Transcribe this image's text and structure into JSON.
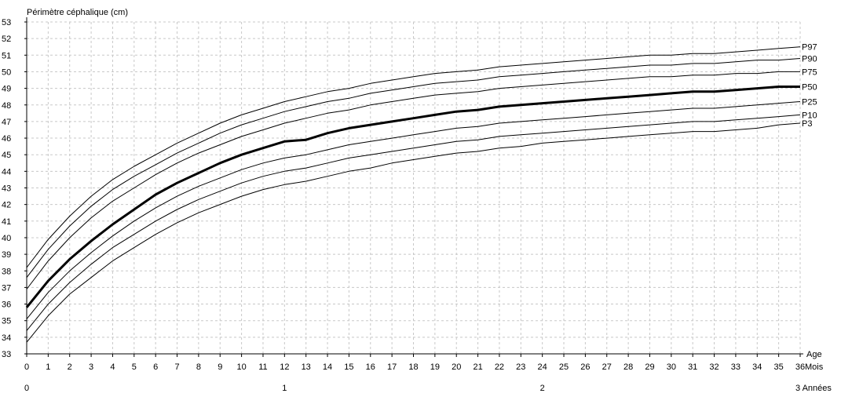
{
  "chart_data": {
    "type": "line",
    "title": "Périmètre céphalique (cm)",
    "xlabel": "Age",
    "x_unit": "Mois",
    "x_unit_years": "Années",
    "xlim": [
      0,
      36
    ],
    "ylim": [
      33,
      53
    ],
    "grid": true,
    "x_ticks": [
      0,
      1,
      2,
      3,
      4,
      5,
      6,
      7,
      8,
      9,
      10,
      11,
      12,
      13,
      14,
      15,
      16,
      17,
      18,
      19,
      20,
      21,
      22,
      23,
      24,
      25,
      26,
      27,
      28,
      29,
      30,
      31,
      32,
      33,
      34,
      35,
      36
    ],
    "y_ticks": [
      33,
      34,
      35,
      36,
      37,
      38,
      39,
      40,
      41,
      42,
      43,
      44,
      45,
      46,
      47,
      48,
      49,
      50,
      51,
      52,
      53
    ],
    "year_ticks": [
      {
        "month": 0,
        "label": "0"
      },
      {
        "month": 12,
        "label": "1"
      },
      {
        "month": 24,
        "label": "2"
      },
      {
        "month": 36,
        "label": "3"
      }
    ],
    "x": [
      0,
      1,
      2,
      3,
      4,
      5,
      6,
      7,
      8,
      9,
      10,
      11,
      12,
      13,
      14,
      15,
      16,
      17,
      18,
      19,
      20,
      21,
      22,
      23,
      24,
      25,
      26,
      27,
      28,
      29,
      30,
      31,
      32,
      33,
      34,
      35,
      36
    ],
    "series": [
      {
        "name": "P97",
        "bold": false,
        "values": [
          38.2,
          39.9,
          41.3,
          42.5,
          43.5,
          44.3,
          45.0,
          45.7,
          46.3,
          46.9,
          47.4,
          47.8,
          48.2,
          48.5,
          48.8,
          49.0,
          49.3,
          49.5,
          49.7,
          49.9,
          50.0,
          50.1,
          50.3,
          50.4,
          50.5,
          50.6,
          50.7,
          50.8,
          50.9,
          51.0,
          51.0,
          51.1,
          51.1,
          51.2,
          51.3,
          51.4,
          51.5
        ]
      },
      {
        "name": "P90",
        "bold": false,
        "values": [
          37.6,
          39.3,
          40.7,
          41.9,
          42.9,
          43.7,
          44.4,
          45.1,
          45.7,
          46.3,
          46.8,
          47.2,
          47.6,
          47.9,
          48.2,
          48.4,
          48.7,
          48.9,
          49.1,
          49.3,
          49.4,
          49.5,
          49.7,
          49.8,
          49.9,
          50.0,
          50.1,
          50.2,
          50.3,
          50.4,
          50.4,
          50.5,
          50.5,
          50.6,
          50.7,
          50.7,
          50.8
        ]
      },
      {
        "name": "P75",
        "bold": false,
        "values": [
          36.9,
          38.6,
          40.0,
          41.2,
          42.2,
          43.0,
          43.8,
          44.5,
          45.1,
          45.6,
          46.1,
          46.5,
          46.9,
          47.2,
          47.5,
          47.7,
          48.0,
          48.2,
          48.4,
          48.6,
          48.7,
          48.8,
          49.0,
          49.1,
          49.2,
          49.3,
          49.4,
          49.5,
          49.6,
          49.7,
          49.7,
          49.8,
          49.8,
          49.9,
          49.9,
          50.0,
          50.0
        ]
      },
      {
        "name": "P50",
        "bold": true,
        "values": [
          35.8,
          37.4,
          38.7,
          39.8,
          40.8,
          41.7,
          42.6,
          43.3,
          43.9,
          44.5,
          45.0,
          45.4,
          45.8,
          45.9,
          46.3,
          46.6,
          46.8,
          47.0,
          47.2,
          47.4,
          47.6,
          47.7,
          47.9,
          48.0,
          48.1,
          48.2,
          48.3,
          48.4,
          48.5,
          48.6,
          48.7,
          48.8,
          48.8,
          48.9,
          49.0,
          49.1,
          49.1
        ]
      },
      {
        "name": "P25",
        "bold": false,
        "values": [
          35.1,
          36.7,
          38.0,
          39.1,
          40.1,
          41.0,
          41.8,
          42.5,
          43.1,
          43.6,
          44.1,
          44.5,
          44.8,
          45.0,
          45.3,
          45.6,
          45.8,
          46.0,
          46.2,
          46.4,
          46.6,
          46.7,
          46.9,
          47.0,
          47.1,
          47.2,
          47.3,
          47.4,
          47.5,
          47.6,
          47.7,
          47.8,
          47.8,
          47.9,
          48.0,
          48.1,
          48.2
        ]
      },
      {
        "name": "P10",
        "bold": false,
        "values": [
          34.4,
          36.0,
          37.3,
          38.4,
          39.4,
          40.2,
          41.0,
          41.7,
          42.3,
          42.8,
          43.3,
          43.7,
          44.0,
          44.2,
          44.5,
          44.8,
          45.0,
          45.2,
          45.4,
          45.6,
          45.8,
          45.9,
          46.1,
          46.2,
          46.3,
          46.4,
          46.5,
          46.6,
          46.7,
          46.8,
          46.9,
          47.0,
          47.0,
          47.1,
          47.2,
          47.3,
          47.4
        ]
      },
      {
        "name": "P3",
        "bold": false,
        "values": [
          33.7,
          35.3,
          36.6,
          37.6,
          38.6,
          39.4,
          40.2,
          40.9,
          41.5,
          42.0,
          42.5,
          42.9,
          43.2,
          43.4,
          43.7,
          44.0,
          44.2,
          44.5,
          44.7,
          44.9,
          45.1,
          45.2,
          45.4,
          45.5,
          45.7,
          45.8,
          45.9,
          46.0,
          46.1,
          46.2,
          46.3,
          46.4,
          46.4,
          46.5,
          46.6,
          46.8,
          46.9
        ]
      }
    ]
  }
}
